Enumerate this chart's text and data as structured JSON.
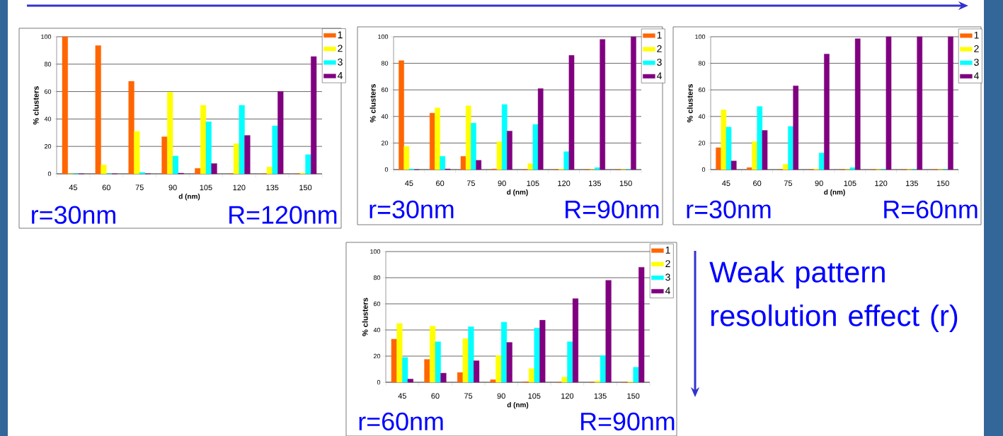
{
  "chart_data": [
    {
      "type": "bar",
      "categories": [
        "45",
        "60",
        "75",
        "90",
        "105",
        "120",
        "135",
        "150"
      ],
      "xlabel": "d (nm)",
      "ylabel": "% clusters",
      "ylim": [
        0,
        100
      ],
      "yticks": [
        0,
        20,
        40,
        60,
        80,
        100
      ],
      "grid": "y",
      "legend": "top right",
      "series": [
        {
          "name": "1",
          "color": "#ff6600",
          "values": [
            100,
            93.5,
            67.5,
            27,
            4,
            0,
            0,
            0
          ]
        },
        {
          "name": "2",
          "color": "#ffff00",
          "values": [
            0,
            6.5,
            31,
            59.5,
            50,
            22,
            5,
            0.5
          ]
        },
        {
          "name": "3",
          "color": "#00ffff",
          "values": [
            0,
            0,
            1,
            13,
            38,
            50,
            35,
            14
          ]
        },
        {
          "name": "4",
          "color": "#800080",
          "values": [
            0,
            0,
            0,
            0.5,
            7.5,
            28,
            60,
            85.5
          ]
        }
      ],
      "annotations": [
        "r=30nm",
        "R=120nm"
      ]
    },
    {
      "type": "bar",
      "categories": [
        "45",
        "60",
        "75",
        "90",
        "105",
        "120",
        "135",
        "150"
      ],
      "xlabel": "d (nm)",
      "ylabel": "% clusters",
      "ylim": [
        0,
        100
      ],
      "yticks": [
        0,
        20,
        40,
        60,
        80,
        100
      ],
      "grid": "y",
      "legend": "top right",
      "series": [
        {
          "name": "1",
          "color": "#ff6600",
          "values": [
            82,
            42.5,
            10,
            0.5,
            0,
            0,
            0,
            0
          ]
        },
        {
          "name": "2",
          "color": "#ffff00",
          "values": [
            17.5,
            46.5,
            48,
            21,
            4.5,
            0.5,
            0,
            0
          ]
        },
        {
          "name": "3",
          "color": "#00ffff",
          "values": [
            0.5,
            10,
            35,
            49,
            34,
            13.5,
            1.5,
            0
          ]
        },
        {
          "name": "4",
          "color": "#800080",
          "values": [
            0,
            0.5,
            7,
            29,
            61,
            86,
            98,
            100
          ]
        }
      ],
      "annotations": [
        "r=30nm",
        "R=90nm"
      ]
    },
    {
      "type": "bar",
      "categories": [
        "45",
        "60",
        "75",
        "90",
        "105",
        "120",
        "135",
        "150"
      ],
      "xlabel": "d (nm)",
      "ylabel": "% clusters",
      "ylim": [
        0,
        100
      ],
      "yticks": [
        0,
        20,
        40,
        60,
        80,
        100
      ],
      "grid": "y",
      "legend": "top right",
      "series": [
        {
          "name": "1",
          "color": "#ff6600",
          "values": [
            16.5,
            1.5,
            0,
            0,
            0,
            0,
            0,
            0
          ]
        },
        {
          "name": "2",
          "color": "#ffff00",
          "values": [
            45,
            21,
            4,
            0.5,
            0,
            0,
            0,
            0
          ]
        },
        {
          "name": "3",
          "color": "#00ffff",
          "values": [
            32,
            47.5,
            32.5,
            12.5,
            1.5,
            0,
            0,
            0
          ]
        },
        {
          "name": "4",
          "color": "#800080",
          "values": [
            6.5,
            29.5,
            63,
            87,
            98.5,
            100,
            100,
            100
          ]
        }
      ],
      "annotations": [
        "r=30nm",
        "R=60nm"
      ]
    },
    {
      "type": "bar",
      "categories": [
        "45",
        "60",
        "75",
        "90",
        "105",
        "120",
        "135",
        "150"
      ],
      "xlabel": "d (nm)",
      "ylabel": "% clusters",
      "ylim": [
        0,
        100
      ],
      "yticks": [
        0,
        20,
        40,
        60,
        80,
        100
      ],
      "grid": "y",
      "legend": "top right",
      "series": [
        {
          "name": "1",
          "color": "#ff6600",
          "values": [
            33,
            17.5,
            7.5,
            2,
            0.5,
            0,
            0,
            0
          ]
        },
        {
          "name": "2",
          "color": "#ffff00",
          "values": [
            45,
            43,
            33.5,
            20.5,
            10.5,
            4,
            1,
            0.5
          ]
        },
        {
          "name": "3",
          "color": "#00ffff",
          "values": [
            19,
            31,
            42.5,
            46,
            41.5,
            31,
            20.5,
            11.5
          ]
        },
        {
          "name": "4",
          "color": "#800080",
          "values": [
            2.5,
            7,
            16.5,
            30.5,
            47.5,
            64,
            78,
            88
          ]
        }
      ],
      "annotations": [
        "r=60nm",
        "R=90nm",
        "Weak pattern resolution effect (r)"
      ]
    }
  ]
}
